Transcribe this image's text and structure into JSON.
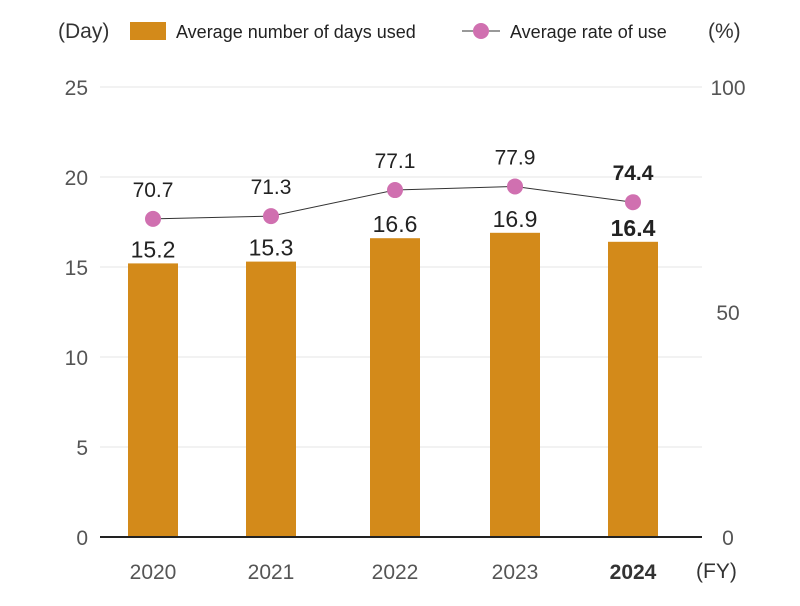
{
  "chart_data": {
    "type": "bar",
    "title": "",
    "categories": [
      "2020",
      "2021",
      "2022",
      "2023",
      "2024"
    ],
    "highlight_category": "2024",
    "left_axis": {
      "label": "(Day)",
      "ylim": [
        0,
        25
      ],
      "ticks": [
        0,
        5,
        10,
        15,
        20,
        25
      ]
    },
    "right_axis": {
      "label": "(%)",
      "ylim": [
        0,
        100
      ],
      "ticks": [
        0,
        50,
        100
      ]
    },
    "xlabel": "(FY)",
    "legend_position": "top",
    "grid": true,
    "series": [
      {
        "name": "Average number of days used",
        "type": "bar",
        "axis": "left",
        "color": "#D38A1A",
        "values": [
          15.2,
          15.3,
          16.6,
          16.9,
          16.4
        ],
        "labels": [
          "15.2",
          "15.3",
          "16.6",
          "16.9",
          "16.4"
        ]
      },
      {
        "name": "Average rate of use",
        "type": "line",
        "axis": "right",
        "color": "#D070B0",
        "values": [
          70.7,
          71.3,
          77.1,
          77.9,
          74.4
        ],
        "labels": [
          "70.7",
          "71.3",
          "77.1",
          "77.9",
          "74.4"
        ]
      }
    ]
  }
}
